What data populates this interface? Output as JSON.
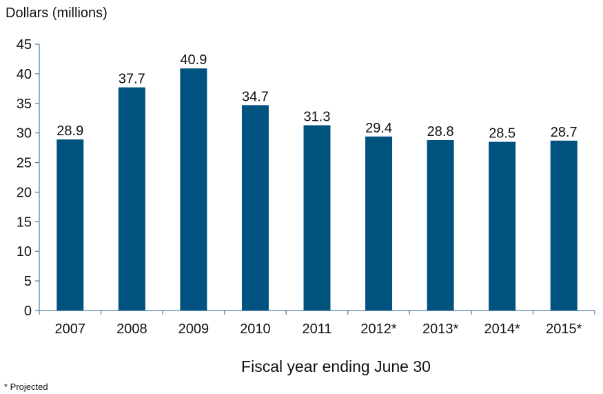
{
  "chart_data": {
    "type": "bar",
    "categories": [
      "2007",
      "2008",
      "2009",
      "2010",
      "2011",
      "2012*",
      "2013*",
      "2014*",
      "2015*"
    ],
    "values": [
      28.9,
      37.7,
      40.9,
      34.7,
      31.3,
      29.4,
      28.8,
      28.5,
      28.7
    ],
    "data_labels": [
      "28.9",
      "37.7",
      "40.9",
      "34.7",
      "31.3",
      "29.4",
      "28.8",
      "28.5",
      "28.7"
    ],
    "ylabel": "Dollars (millions)",
    "xlabel": "Fiscal year ending June 30",
    "ylim": [
      0,
      45
    ],
    "yticks": [
      0,
      5,
      10,
      15,
      20,
      25,
      30,
      35,
      40,
      45
    ],
    "grid": false,
    "bar_color": "#00527f",
    "footnote": "* Projected"
  }
}
